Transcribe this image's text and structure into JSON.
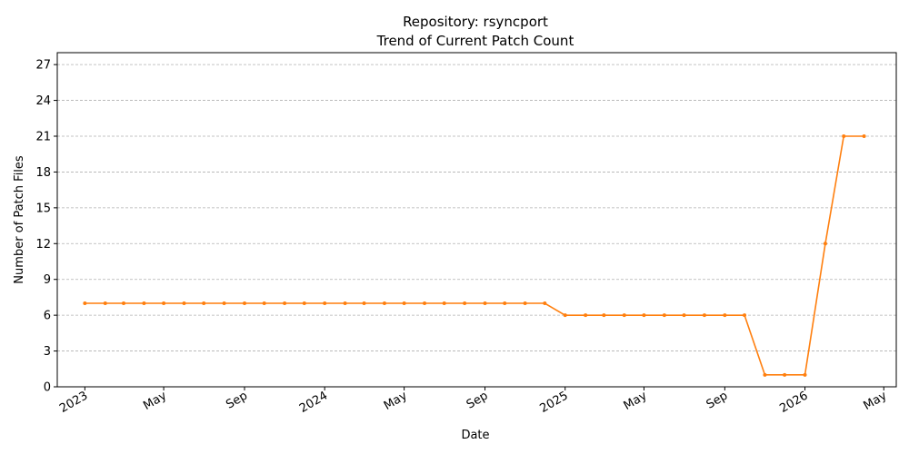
{
  "chart_data": {
    "type": "line",
    "title": "Repository: rsyncport",
    "subtitle": "Trend of Current Patch Count",
    "xlabel": "Date",
    "ylabel": "Number of Patch Files",
    "ylim": [
      0,
      28
    ],
    "yticks": [
      0,
      3,
      6,
      9,
      12,
      15,
      18,
      21,
      24,
      27
    ],
    "xlim": [
      "2022-11-20",
      "2026-05-20"
    ],
    "xticks": [
      {
        "date": "2023-01-01",
        "label": "2023"
      },
      {
        "date": "2023-05-01",
        "label": "May"
      },
      {
        "date": "2023-09-01",
        "label": "Sep"
      },
      {
        "date": "2024-01-01",
        "label": "2024"
      },
      {
        "date": "2024-05-01",
        "label": "May"
      },
      {
        "date": "2024-09-01",
        "label": "Sep"
      },
      {
        "date": "2025-01-01",
        "label": "2025"
      },
      {
        "date": "2025-05-01",
        "label": "May"
      },
      {
        "date": "2025-09-01",
        "label": "Sep"
      },
      {
        "date": "2026-01-01",
        "label": "2026"
      },
      {
        "date": "2026-05-01",
        "label": "May"
      }
    ],
    "grid": "y",
    "color": "#ff7f0e",
    "series": [
      {
        "x": [
          "2023-01-01",
          "2023-02-01",
          "2023-03-01",
          "2023-04-01",
          "2023-05-01",
          "2023-06-01",
          "2023-07-01",
          "2023-08-01",
          "2023-09-01",
          "2023-10-01",
          "2023-11-01",
          "2023-12-01",
          "2024-01-01",
          "2024-02-01",
          "2024-03-01",
          "2024-04-01",
          "2024-05-01",
          "2024-06-01",
          "2024-07-01",
          "2024-08-01",
          "2024-09-01",
          "2024-10-01",
          "2024-11-01",
          "2024-12-01",
          "2025-01-01",
          "2025-02-01",
          "2025-03-01",
          "2025-04-01",
          "2025-05-01",
          "2025-06-01",
          "2025-07-01",
          "2025-08-01",
          "2025-09-01",
          "2025-10-01",
          "2025-11-01",
          "2025-12-01",
          "2026-01-01",
          "2026-02-01",
          "2026-03-01",
          "2026-04-01"
        ],
        "y": [
          7,
          7,
          7,
          7,
          7,
          7,
          7,
          7,
          7,
          7,
          7,
          7,
          7,
          7,
          7,
          7,
          7,
          7,
          7,
          7,
          7,
          7,
          7,
          7,
          6,
          6,
          6,
          6,
          6,
          6,
          6,
          6,
          6,
          6,
          1,
          1,
          1,
          12,
          21,
          21
        ]
      }
    ]
  }
}
